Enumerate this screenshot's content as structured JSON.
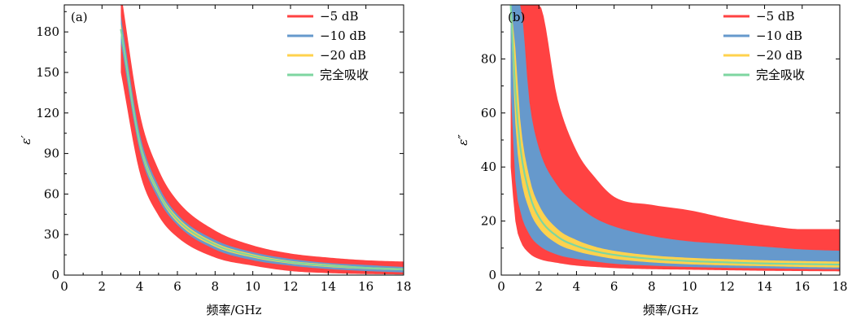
{
  "chart_data": [
    {
      "type": "area",
      "panel_label": "(a)",
      "xlabel": "频率/GHz",
      "ylabel": "ε′",
      "xlim": [
        0,
        18
      ],
      "ylim": [
        0,
        200
      ],
      "xticks": [
        0,
        2,
        4,
        6,
        8,
        10,
        12,
        14,
        16,
        18
      ],
      "yticks": [
        0,
        30,
        60,
        90,
        120,
        150,
        180
      ],
      "grid": false,
      "legend_position": "top-right",
      "x": [
        3,
        4,
        5,
        6,
        8,
        10,
        12,
        14,
        16,
        18
      ],
      "series": [
        {
          "name": "−5 dB",
          "color": "#ff4242",
          "kind": "band",
          "lower": [
            150,
            76,
            44,
            28,
            13,
            7,
            3,
            1.5,
            0.8,
            0.5
          ],
          "upper": [
            210,
            120,
            78,
            55,
            33,
            22,
            16,
            13,
            11,
            10
          ]
        },
        {
          "name": "−10 dB",
          "color": "#6699cc",
          "kind": "band",
          "lower": [
            172,
            92,
            56,
            37,
            19,
            11,
            7,
            4.5,
            3,
            2
          ],
          "upper": [
            192,
            105,
            66,
            45,
            26,
            17,
            12,
            9,
            7.5,
            6
          ]
        },
        {
          "name": "−20 dB",
          "color": "#ffd24d",
          "kind": "band",
          "lower": [
            178,
            95,
            59,
            39,
            21,
            13,
            8.5,
            6,
            4.5,
            3.5
          ],
          "upper": [
            186,
            101,
            63,
            43,
            24,
            15.5,
            10.5,
            8,
            6,
            5
          ]
        },
        {
          "name": "完全吸收",
          "color": "#7ed6a0",
          "kind": "line",
          "values": [
            182,
            98,
            61,
            41,
            22.5,
            14.2,
            9.5,
            7,
            5.3,
            4.2
          ]
        }
      ]
    },
    {
      "type": "area",
      "panel_label": "(b)",
      "xlabel": "频率/GHz",
      "ylabel": "ε″",
      "xlim": [
        0,
        18
      ],
      "ylim": [
        0,
        100
      ],
      "xticks": [
        0,
        2,
        4,
        6,
        8,
        10,
        12,
        14,
        16,
        18
      ],
      "yticks": [
        0,
        20,
        40,
        60,
        80
      ],
      "grid": false,
      "legend_position": "top-right",
      "x": [
        0.5,
        0.75,
        1,
        1.5,
        2,
        3,
        4,
        5,
        6,
        8,
        10,
        12,
        14,
        16,
        18
      ],
      "series": [
        {
          "name": "−5 dB",
          "color": "#ff4242",
          "kind": "band",
          "lower": [
            40,
            20,
            13,
            8,
            6,
            4.5,
            3.5,
            3,
            2.6,
            2.2,
            2,
            1.8,
            1.6,
            1.5,
            1.4
          ],
          "upper": [
            100,
            100,
            100,
            100,
            100,
            65,
            46,
            36,
            29,
            26,
            24,
            21,
            18.5,
            17,
            17
          ]
        },
        {
          "name": "−10 dB",
          "color": "#6699cc",
          "kind": "band",
          "lower": [
            70,
            35,
            24,
            15,
            11,
            7.5,
            6,
            5,
            4.2,
            3.5,
            3,
            2.7,
            2.5,
            2.3,
            2.2
          ],
          "upper": [
            100,
            100,
            100,
            64,
            47,
            33,
            26,
            21,
            18,
            14.5,
            12.5,
            11.5,
            10.5,
            9.5,
            9
          ]
        },
        {
          "name": "−20 dB",
          "color": "#ffd24d",
          "kind": "band",
          "lower": [
            96,
            56,
            38,
            24,
            17.5,
            11.5,
            8.8,
            7.2,
            6,
            4.7,
            4,
            3.6,
            3.3,
            3,
            2.8
          ],
          "upper": [
            100,
            84,
            58,
            36,
            26,
            17,
            13,
            10.5,
            9,
            7.3,
            6.4,
            5.9,
            5.5,
            5.2,
            5
          ]
        },
        {
          "name": "完全吸收",
          "color": "#7ed6a0",
          "kind": "line",
          "values": [
            100,
            68,
            48,
            30,
            21.5,
            14.2,
            10.8,
            8.8,
            7.5,
            6,
            5.2,
            4.7,
            4.3,
            4.1,
            3.9
          ]
        }
      ]
    }
  ]
}
